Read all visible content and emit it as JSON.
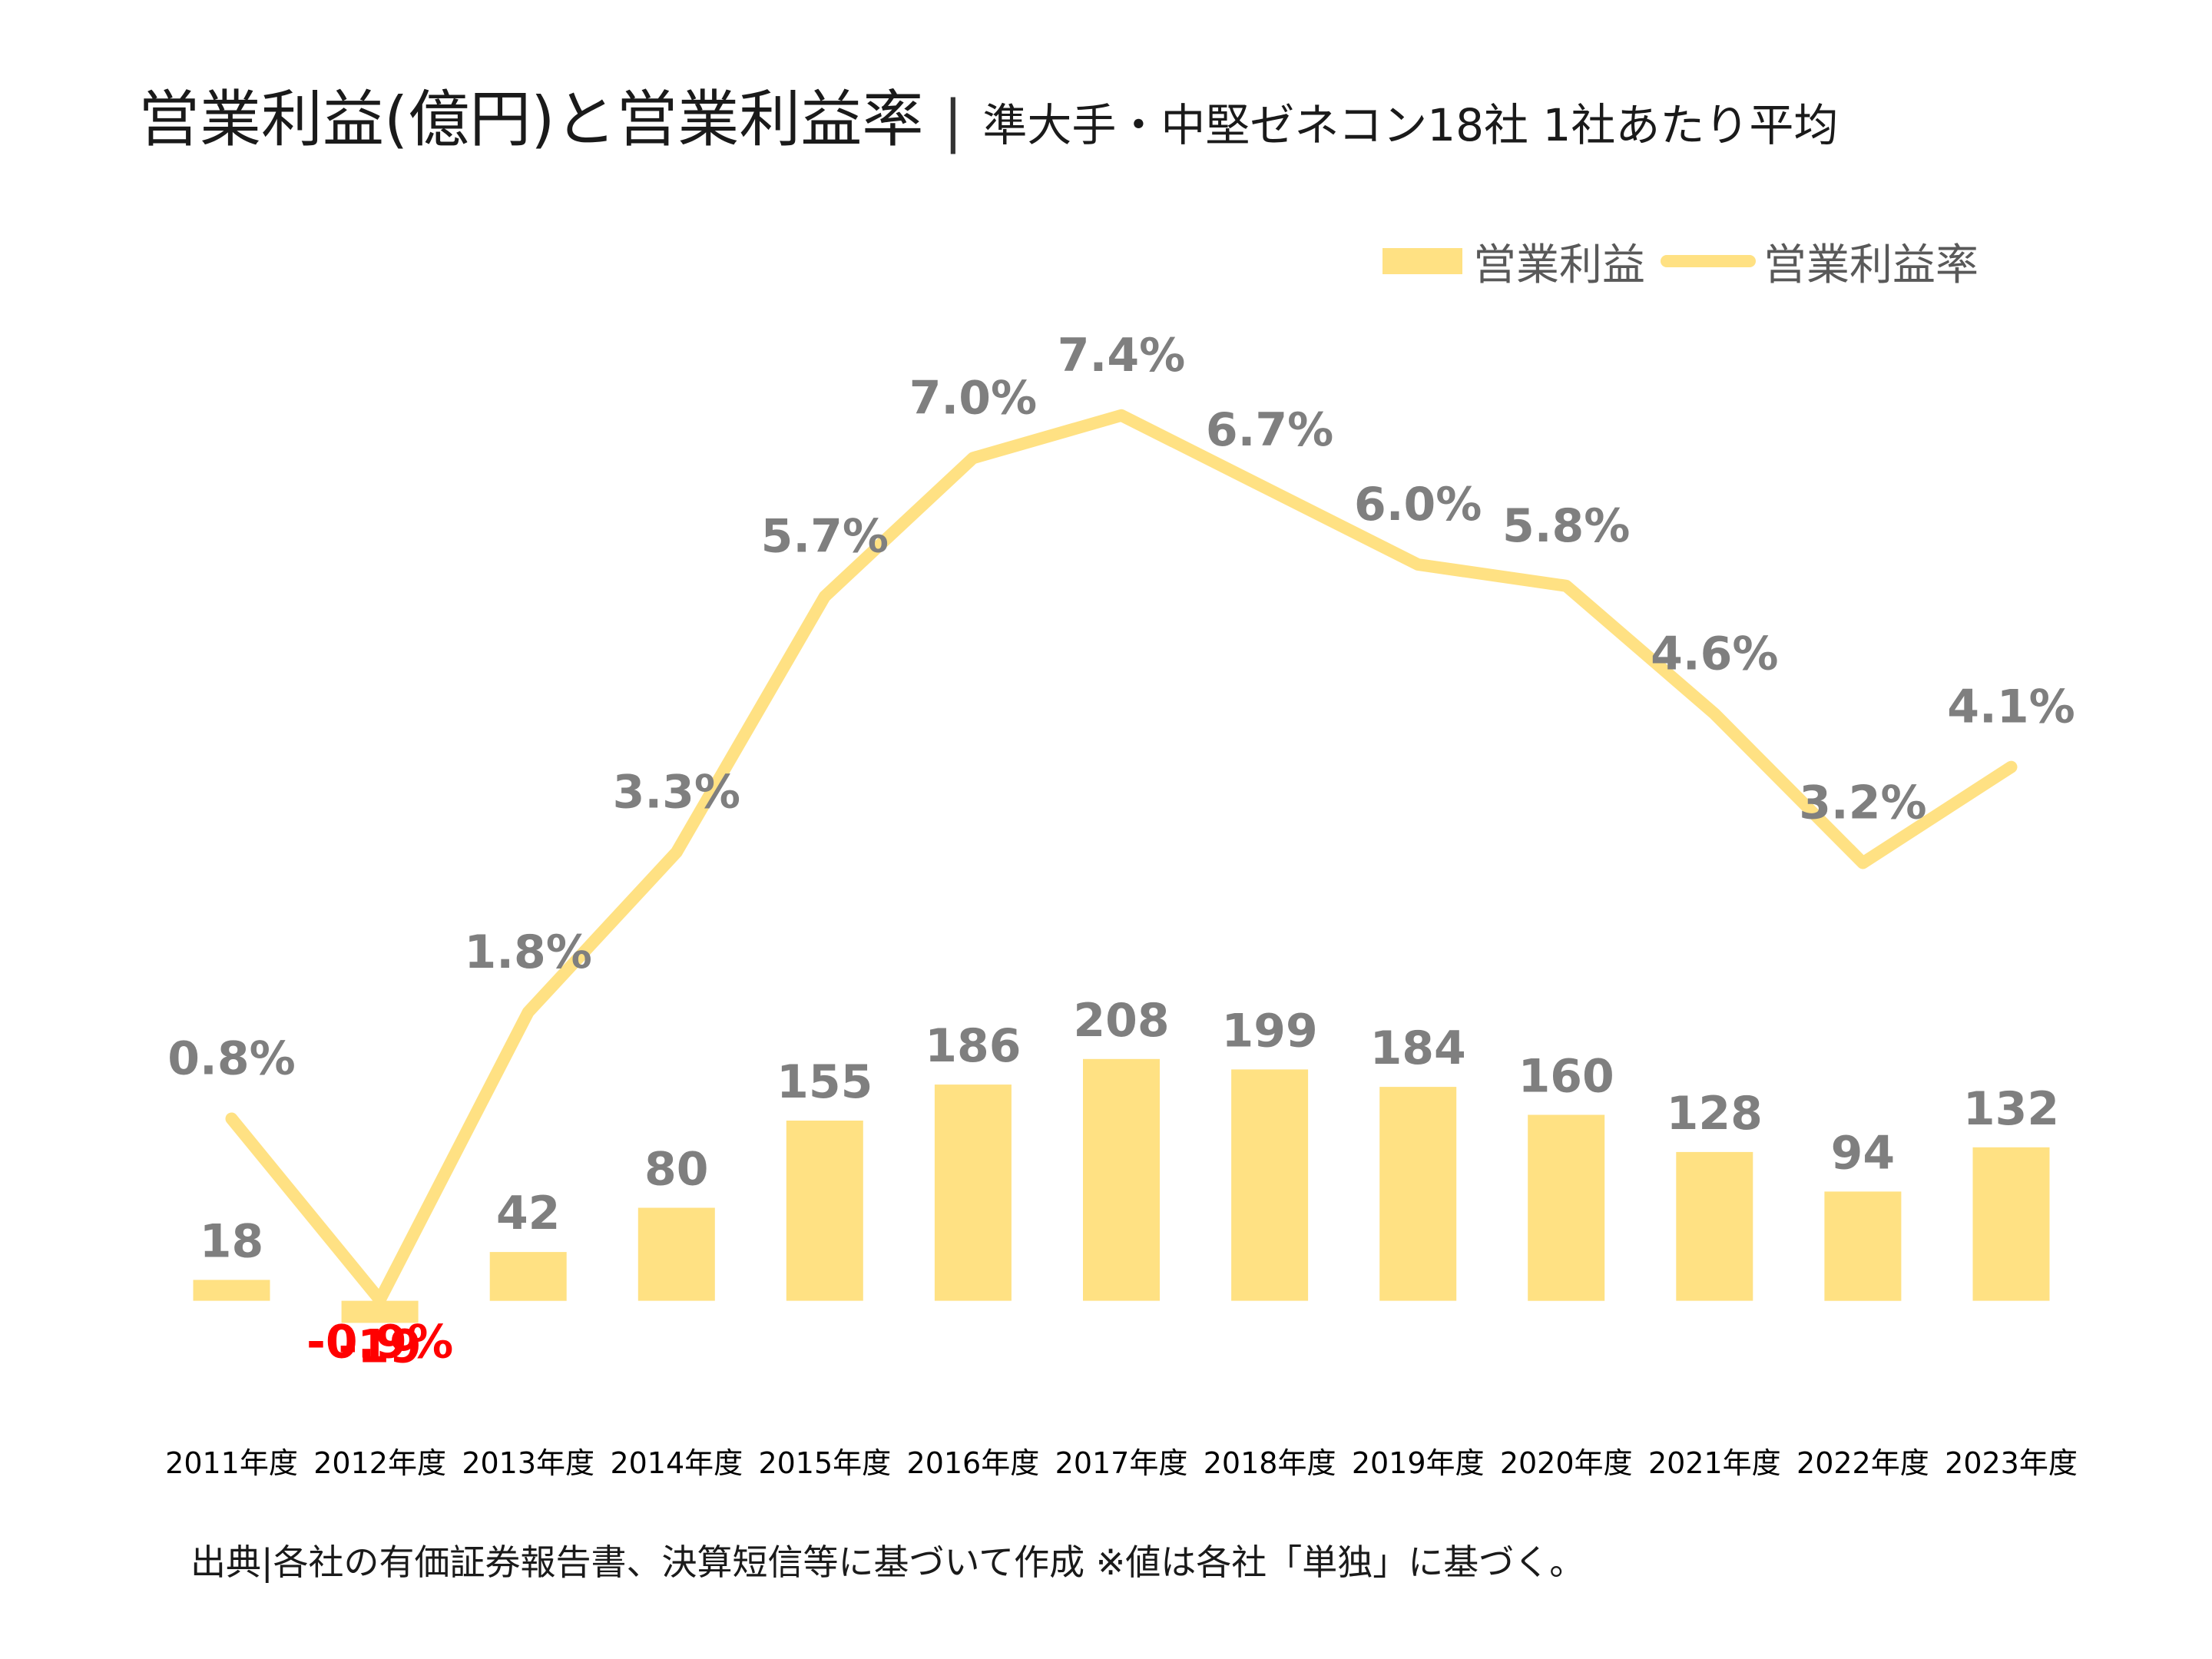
{
  "title": {
    "main": "営業利益(億円)と営業利益率",
    "separator": "|",
    "subtitle": "準大手・中堅ゼネコン18社 1社あたり平均"
  },
  "legend": {
    "bar_label": "営業利益",
    "line_label": "営業利益率"
  },
  "source_note": "出典|各社の有価証券報告書、決算短信等に基づいて作成  ※値は各社「単独」に基づく。",
  "colors": {
    "series": "#FFE183",
    "label_text": "#7F7F7F",
    "negative_label": "#FF0000",
    "category_text": "#000000"
  },
  "chart_data": {
    "type": "bar+line",
    "categories": [
      "2011年度",
      "2012年度",
      "2013年度",
      "2014年度",
      "2015年度",
      "2016年度",
      "2017年度",
      "2018年度",
      "2019年度",
      "2020年度",
      "2021年度",
      "2022年度",
      "2023年度"
    ],
    "series": [
      {
        "name": "営業利益",
        "type": "bar",
        "axis": "primary",
        "values": [
          18,
          -19,
          42,
          80,
          155,
          186,
          208,
          199,
          184,
          160,
          128,
          94,
          132
        ],
        "labels": [
          "18",
          "-19",
          "42",
          "80",
          "155",
          "186",
          "208",
          "199",
          "184",
          "160",
          "128",
          "94",
          "132"
        ]
      },
      {
        "name": "営業利益率",
        "type": "line",
        "axis": "secondary",
        "values": [
          0.8,
          -0.9,
          1.8,
          3.3,
          5.7,
          7.0,
          7.4,
          6.7,
          6.0,
          5.8,
          4.6,
          3.2,
          4.1
        ],
        "labels": [
          "0.8%",
          "-0.9%",
          "1.8%",
          "3.3%",
          "5.7%",
          "7.0%",
          "7.4%",
          "6.7%",
          "6.0%",
          "5.8%",
          "4.6%",
          "3.2%",
          "4.1%"
        ]
      }
    ],
    "primary_axis_range": [
      -100,
      1000
    ],
    "secondary_axis_range": [
      -2,
      10
    ],
    "grid": false,
    "legend_position": "top-right"
  }
}
